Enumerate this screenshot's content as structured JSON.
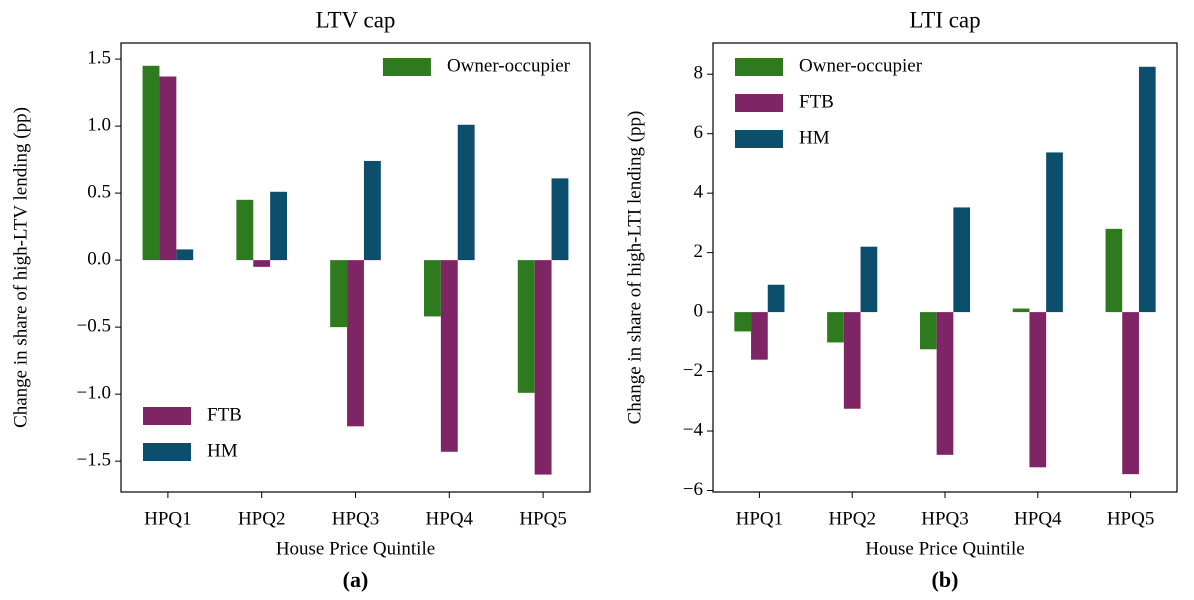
{
  "chart_data": [
    {
      "type": "bar",
      "title": "LTV cap",
      "panel_label": "(a)",
      "xlabel": "House Price Quintile",
      "ylabel": "Change in share of high-LTV lending (pp)",
      "categories": [
        "HPQ1",
        "HPQ2",
        "HPQ3",
        "HPQ4",
        "HPQ5"
      ],
      "series": [
        {
          "name": "Owner-occupier",
          "color": "#2e7a1f",
          "values": [
            1.45,
            0.45,
            -0.5,
            -0.42,
            -0.99
          ]
        },
        {
          "name": "FTB",
          "color": "#7f2566",
          "values": [
            1.37,
            -0.05,
            -1.24,
            -1.43,
            -1.6
          ]
        },
        {
          "name": "HM",
          "color": "#0b4f6c",
          "values": [
            0.08,
            0.51,
            0.74,
            1.01,
            0.61
          ]
        }
      ],
      "ylim": [
        -1.73,
        1.62
      ],
      "yticks": [
        {
          "value": -1.5,
          "label": "−1.5"
        },
        {
          "value": -1.0,
          "label": "−1.0"
        },
        {
          "value": -0.5,
          "label": "−0.5"
        },
        {
          "value": 0,
          "label": "0.0"
        },
        0.5,
        {
          "value": 1.0,
          "label": "1.0"
        },
        1.5
      ],
      "legend": [
        {
          "loc": "upper right",
          "series": [
            0
          ]
        },
        {
          "loc": "lower left",
          "series": [
            1,
            2
          ]
        }
      ]
    },
    {
      "type": "bar",
      "title": "LTI cap",
      "panel_label": "(b)",
      "xlabel": "House Price Quintile",
      "ylabel": "Change in share of high-LTI lending (pp)",
      "categories": [
        "HPQ1",
        "HPQ2",
        "HPQ3",
        "HPQ4",
        "HPQ5"
      ],
      "series": [
        {
          "name": "Owner-occupier",
          "color": "#2e7a1f",
          "values": [
            -0.65,
            -1.02,
            -1.25,
            0.12,
            2.8
          ]
        },
        {
          "name": "FTB",
          "color": "#7f2566",
          "values": [
            -1.6,
            -3.25,
            -4.8,
            -5.22,
            -5.45
          ]
        },
        {
          "name": "HM",
          "color": "#0b4f6c",
          "values": [
            0.92,
            2.2,
            3.52,
            5.37,
            8.25
          ]
        }
      ],
      "ylim": [
        -6.05,
        9.05
      ],
      "yticks": [
        {
          "value": -6,
          "label": "−6"
        },
        {
          "value": -4,
          "label": "−4"
        },
        {
          "value": -2,
          "label": "−2"
        },
        0,
        2,
        4,
        6,
        8
      ],
      "legend": [
        {
          "loc": "upper left",
          "series": [
            0,
            1,
            2
          ]
        }
      ]
    }
  ]
}
